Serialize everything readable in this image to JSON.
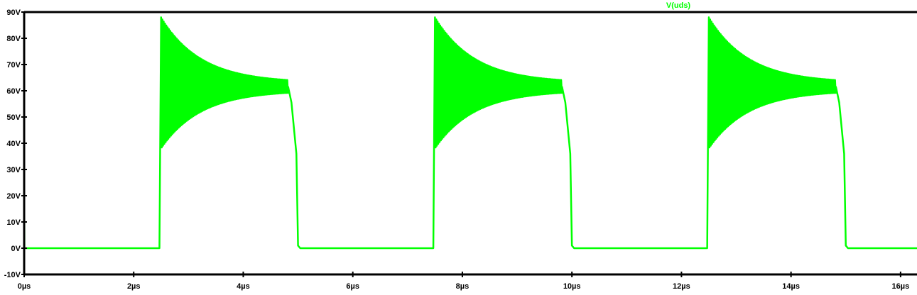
{
  "chart_data": {
    "type": "line",
    "title": "",
    "xlabel": "",
    "ylabel": "",
    "x_unit": "µs",
    "y_unit": "V",
    "xlim": [
      0,
      16.3
    ],
    "ylim": [
      -10,
      90
    ],
    "x_ticks": [
      0,
      2,
      4,
      6,
      8,
      10,
      12,
      14,
      16
    ],
    "x_tick_labels": [
      "0µs",
      "2µs",
      "4µs",
      "6µs",
      "8µs",
      "10µs",
      "12µs",
      "14µs",
      "16µs"
    ],
    "y_ticks": [
      -10,
      0,
      10,
      20,
      30,
      40,
      50,
      60,
      70,
      80,
      90
    ],
    "y_tick_labels": [
      "-10V",
      "0V",
      "10V",
      "20V",
      "30V",
      "40V",
      "50V",
      "60V",
      "70V",
      "80V",
      "90V"
    ],
    "grid": false,
    "legend_position": "top",
    "series": [
      {
        "name": "V(uds)",
        "color": "#00ff00",
        "pulses": [
          {
            "rise_time_us": 2.5,
            "fall_start_us": 4.82,
            "fall_end_us": 5.0
          },
          {
            "rise_time_us": 7.5,
            "fall_start_us": 9.82,
            "fall_end_us": 10.0
          },
          {
            "rise_time_us": 12.5,
            "fall_start_us": 14.82,
            "fall_end_us": 15.0
          }
        ],
        "low_level_v": 0,
        "initial_spike_v": 36,
        "ringing_peak_v": 88,
        "ringing_trough_v": 38,
        "settled_level_v": 61.5,
        "fall_knee_v": 36
      }
    ]
  }
}
